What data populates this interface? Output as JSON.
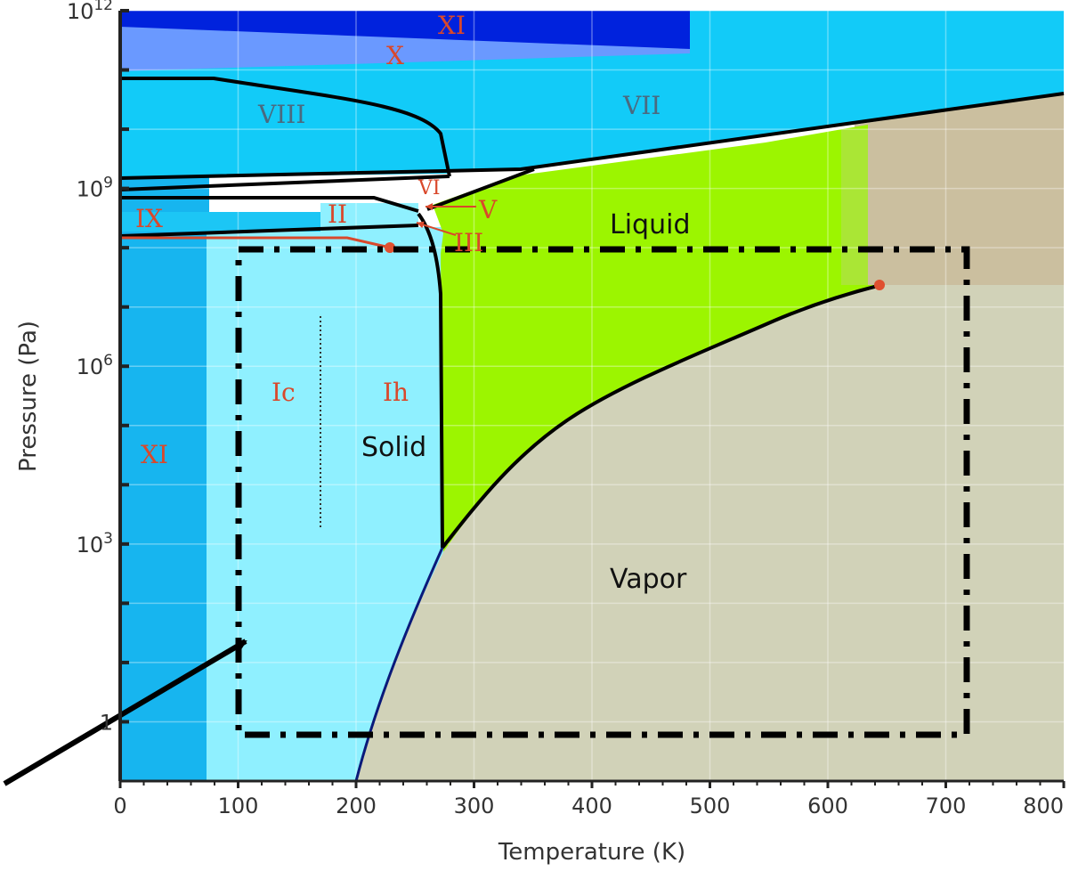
{
  "chart_data": {
    "type": "area",
    "title": "",
    "xlabel": "Temperature (K)",
    "ylabel": "Pressure (Pa)",
    "xlim": [
      0,
      800
    ],
    "ylim_log10": [
      -1,
      12
    ],
    "y_scale": "log",
    "grid": true,
    "x_ticks": [
      "0",
      "100",
      "200",
      "300",
      "400",
      "500",
      "600",
      "700",
      "800"
    ],
    "y_ticks": [
      {
        "value": 1,
        "label": "1"
      },
      {
        "value": 1000,
        "label": "10^3"
      },
      {
        "value": 1000000,
        "label": "10^6"
      },
      {
        "value": 1000000000,
        "label": "10^9"
      },
      {
        "value": 1000000000000,
        "label": "10^12"
      }
    ],
    "regions": {
      "liquid": "Liquid",
      "solid": "Solid",
      "vapor": "Vapor",
      "ic": "Ic",
      "ih": "Ih",
      "xi_low": "XI",
      "xi_top": "XI",
      "x": "X",
      "vii": "VII",
      "viii": "VIII",
      "ix": "IX",
      "ii": "II",
      "iii": "III",
      "v": "V",
      "vi": "VI"
    },
    "curves": {
      "sublimation": [
        [
          200,
          -1
        ],
        [
          220,
          0.5
        ],
        [
          240,
          1.6
        ],
        [
          260,
          2.5
        ],
        [
          273,
          2.8
        ]
      ],
      "vaporization": [
        [
          273,
          2.8
        ],
        [
          300,
          3.5
        ],
        [
          350,
          4.5
        ],
        [
          400,
          5.3
        ],
        [
          500,
          6.3
        ],
        [
          600,
          7.0
        ],
        [
          647,
          7.3
        ]
      ],
      "melting_ih": [
        [
          273,
          2.8
        ],
        [
          273,
          6
        ],
        [
          272,
          7.4
        ],
        [
          262,
          8.2
        ],
        [
          251,
          8.3
        ]
      ],
      "triple_point": {
        "T": 273,
        "log10_P": 2.8
      },
      "critical_point": {
        "T": 647,
        "log10_P": 7.3
      }
    },
    "colors": {
      "ice_xi": "#17b5ef",
      "ice_ih_ic": "#8ff0ff",
      "high_pressure_ice": "#12cbf8",
      "liquid": "#9cf500",
      "vapor": "#d1d2b8",
      "supercritical": "#c9bc9c",
      "ice_x": "#6a99ff",
      "ice_xi_top": "#0022dd",
      "label_red": "#d9482b",
      "dashed_box": "#000000"
    },
    "annotations": [
      {
        "type": "dash-dot-box",
        "T_range": [
          100,
          720
        ],
        "log10_P_range": [
          -0.1,
          7.9
        ]
      },
      {
        "type": "arrow",
        "pointing_to": "dash-dot-box lower-left corner"
      }
    ]
  }
}
